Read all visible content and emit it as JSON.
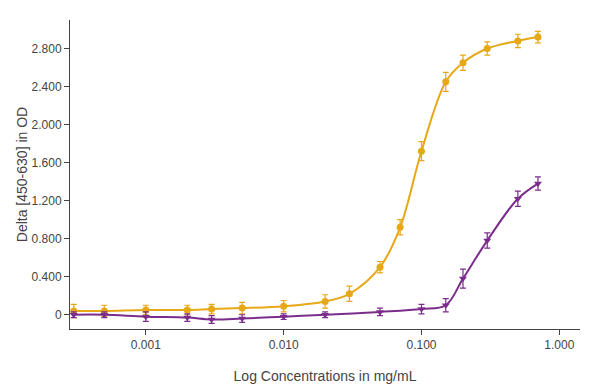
{
  "chart_data": {
    "type": "scatter",
    "xlabel": "Log Concentrations in mg/mL",
    "ylabel": "Delta [450-630] in OD",
    "log": "x",
    "grid": false,
    "xlim": [
      0.0002818382931264454,
      1.4125375446227544
    ],
    "ylim": [
      -0.15,
      3.1
    ],
    "xticks": [
      0.001,
      {
        "value": 0.01,
        "label": "0.010"
      },
      {
        "value": 0.1,
        "label": "0.100"
      },
      {
        "value": 1.0,
        "label": "1.000"
      }
    ],
    "yticks": [
      0,
      {
        "value": 0.4,
        "label": "0.400"
      },
      {
        "value": 0.8,
        "label": "0.800"
      },
      {
        "value": 1.2,
        "label": "1.200"
      },
      {
        "value": 1.6,
        "label": "1.600"
      },
      {
        "value": 2.0,
        "label": "2.000"
      },
      {
        "value": 2.4,
        "label": "2.400"
      },
      {
        "value": 2.8,
        "label": "2.800"
      }
    ],
    "series": [
      {
        "color": "#e6a817",
        "marker": "circle",
        "line_style": "solid",
        "x": [
          0.0003,
          0.0005,
          0.001,
          0.002,
          0.003,
          0.005,
          0.01,
          0.02,
          0.03,
          0.05,
          0.07,
          0.1,
          0.15,
          0.2,
          0.3,
          0.5,
          0.7
        ],
        "values": [
          0.04,
          0.04,
          0.05,
          0.05,
          0.06,
          0.07,
          0.09,
          0.14,
          0.22,
          0.5,
          0.92,
          1.72,
          2.45,
          2.65,
          2.8,
          2.88,
          2.92
        ],
        "errors": [
          0.07,
          0.06,
          0.05,
          0.05,
          0.05,
          0.06,
          0.06,
          0.07,
          0.08,
          0.06,
          0.08,
          0.1,
          0.1,
          0.08,
          0.07,
          0.07,
          0.06
        ]
      },
      {
        "color": "#7b2d8b",
        "marker": "triangle-down",
        "line_style": "solid",
        "x": [
          0.0003,
          0.0005,
          0.001,
          0.002,
          0.003,
          0.005,
          0.01,
          0.02,
          0.05,
          0.1,
          0.15,
          0.2,
          0.3,
          0.5,
          0.7
        ],
        "values": [
          0.0,
          0.0,
          -0.02,
          -0.03,
          -0.05,
          -0.04,
          -0.02,
          0.0,
          0.03,
          0.06,
          0.1,
          0.38,
          0.78,
          1.22,
          1.38
        ],
        "errors": [
          0.03,
          0.03,
          0.05,
          0.04,
          0.04,
          0.04,
          0.03,
          0.03,
          0.04,
          0.05,
          0.07,
          0.1,
          0.08,
          0.08,
          0.07
        ]
      }
    ]
  }
}
